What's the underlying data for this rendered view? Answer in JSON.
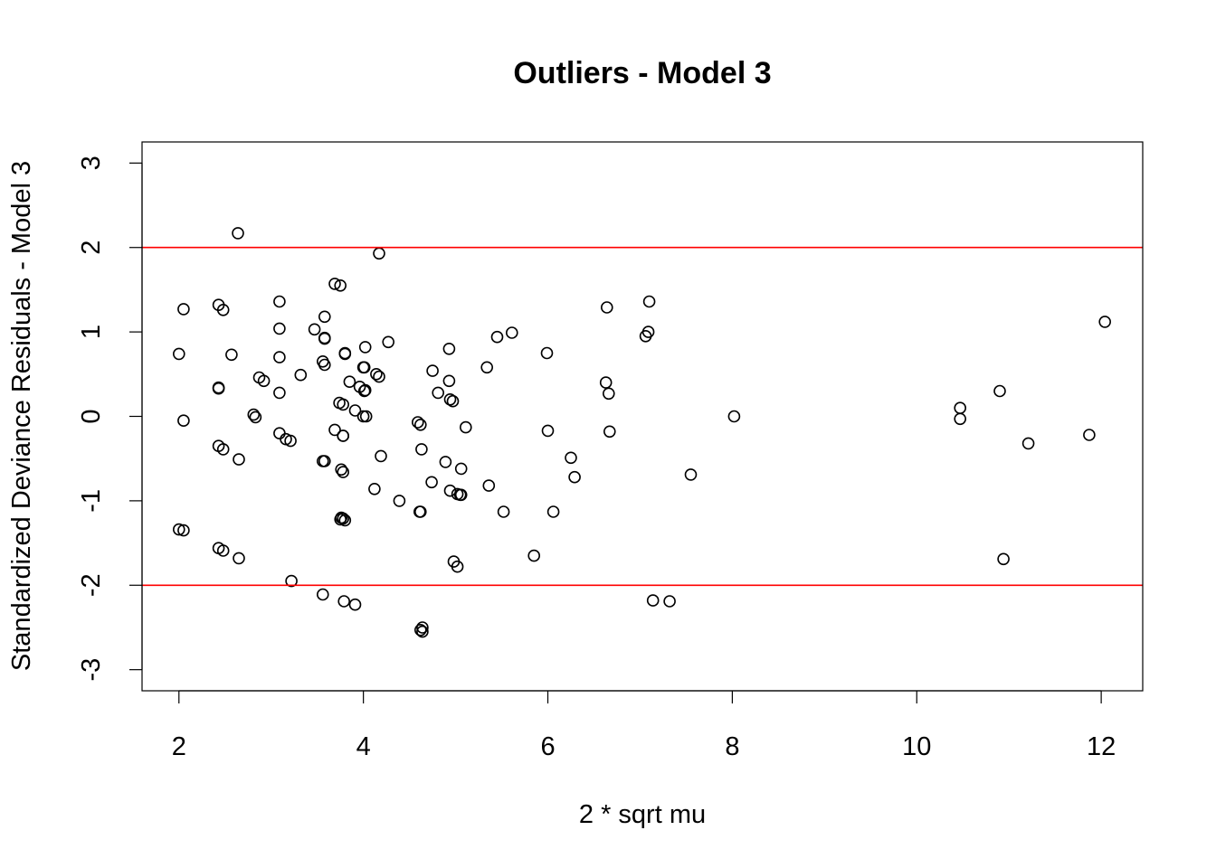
{
  "chart_data": {
    "type": "scatter",
    "title": "Outliers - Model 3",
    "xlabel": "2 * sqrt mu",
    "ylabel": "Standardized Deviance Residuals - Model 3",
    "xlim": [
      1.6,
      12.45
    ],
    "ylim": [
      -3.25,
      3.25
    ],
    "xticks": [
      2,
      4,
      6,
      8,
      10,
      12
    ],
    "yticks": [
      -3,
      -2,
      -1,
      0,
      1,
      2,
      3
    ],
    "reference_lines": [
      {
        "y": 2,
        "color": "#ff0000"
      },
      {
        "y": -2,
        "color": "#ff0000"
      }
    ],
    "grid": false,
    "legend": "none",
    "point_style": "open-circle",
    "x": [
      2.0,
      2.05,
      2.05,
      2.0,
      2.05,
      2.43,
      2.48,
      2.43,
      2.43,
      2.43,
      2.48,
      2.43,
      2.48,
      2.57,
      2.64,
      2.65,
      2.65,
      2.81,
      2.83,
      2.87,
      2.92,
      3.09,
      3.09,
      3.09,
      3.09,
      3.09,
      3.16,
      3.21,
      3.22,
      3.32,
      3.47,
      3.56,
      3.56,
      3.58,
      3.58,
      3.58,
      3.58,
      3.58,
      3.56,
      3.69,
      3.75,
      3.69,
      3.74,
      3.78,
      3.76,
      3.78,
      3.78,
      3.78,
      3.8,
      3.8,
      3.75,
      3.76,
      3.78,
      3.8,
      3.79,
      3.85,
      3.91,
      3.96,
      4.0,
      4.01,
      4.02,
      4.01,
      4.02,
      4.03,
      4.0,
      3.91,
      4.12,
      4.14,
      4.17,
      4.17,
      4.19,
      4.27,
      4.39,
      4.59,
      4.62,
      4.63,
      4.61,
      4.62,
      4.64,
      4.64,
      4.62,
      4.75,
      4.74,
      4.81,
      4.89,
      4.93,
      4.93,
      4.94,
      4.97,
      4.94,
      4.98,
      5.02,
      5.06,
      5.11,
      5.06,
      5.05,
      5.02,
      5.34,
      5.36,
      5.45,
      5.52,
      5.61,
      5.85,
      5.99,
      6.0,
      6.06,
      6.25,
      6.29,
      6.63,
      6.64,
      6.66,
      6.67,
      7.06,
      7.09,
      7.1,
      7.14,
      7.32,
      7.55,
      8.02,
      10.47,
      10.47,
      10.9,
      10.94,
      11.21,
      11.87,
      12.04
    ],
    "y": [
      0.74,
      1.27,
      -0.05,
      -1.34,
      -1.35,
      1.32,
      1.26,
      0.34,
      0.33,
      -0.35,
      -0.39,
      -1.56,
      -1.59,
      0.73,
      2.17,
      -0.51,
      -1.68,
      0.02,
      -0.01,
      0.46,
      0.42,
      1.36,
      1.04,
      0.7,
      0.28,
      -0.2,
      -0.27,
      -0.29,
      -1.95,
      0.49,
      1.03,
      0.65,
      -0.53,
      1.18,
      0.93,
      0.92,
      0.61,
      -0.53,
      -2.11,
      1.57,
      1.55,
      -0.16,
      0.16,
      0.14,
      -0.63,
      -0.23,
      -0.23,
      -0.66,
      0.75,
      0.74,
      -1.22,
      -1.2,
      -1.21,
      -1.23,
      -2.19,
      0.41,
      0.07,
      0.35,
      0.58,
      0.58,
      0.31,
      0.3,
      0.82,
      0.0,
      0.0,
      -2.23,
      -0.86,
      0.5,
      0.47,
      1.93,
      -0.47,
      0.88,
      -1.0,
      -0.07,
      -0.1,
      -0.39,
      -1.13,
      -1.13,
      -2.5,
      -2.55,
      -2.53,
      0.54,
      -0.78,
      0.28,
      -0.54,
      0.8,
      0.42,
      0.2,
      0.18,
      -0.88,
      -1.72,
      -0.92,
      -0.93,
      -0.13,
      -0.62,
      -0.93,
      -1.78,
      0.58,
      -0.82,
      0.94,
      -1.13,
      0.99,
      -1.65,
      0.75,
      -0.17,
      -1.13,
      -0.49,
      -0.72,
      0.4,
      1.29,
      0.27,
      -0.18,
      0.95,
      1.0,
      1.36,
      -2.18,
      -2.19,
      -0.69,
      0.0,
      0.1,
      -0.03,
      0.3,
      -1.69,
      -0.32,
      -0.22,
      1.12
    ]
  }
}
